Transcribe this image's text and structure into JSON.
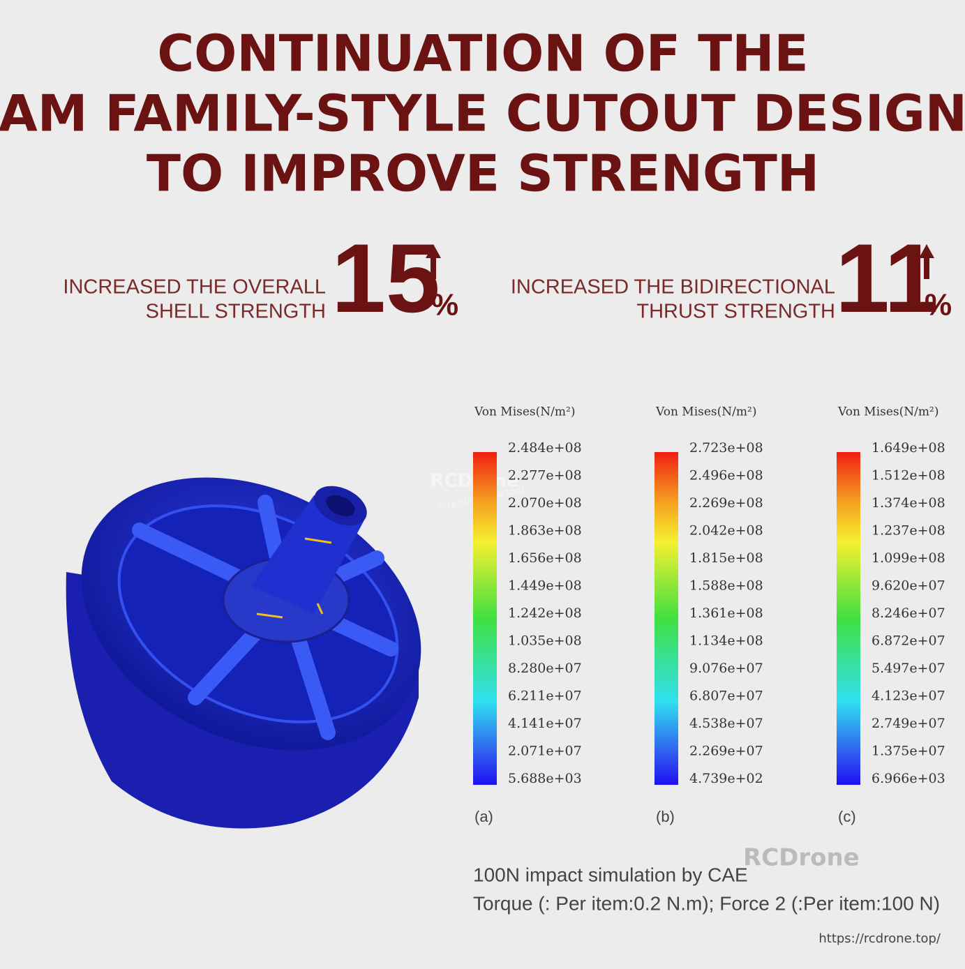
{
  "header": {
    "title_lines": [
      "CONTINUATION OF THE",
      "AM FAMILY-STYLE CUTOUT DESIGN",
      "TO IMPROVE STRENGTH"
    ]
  },
  "stats": [
    {
      "label_lines": [
        "INCREASED THE OVERALL",
        "SHELL STRENGTH"
      ],
      "number": "15",
      "unit": "%"
    },
    {
      "label_lines": [
        "INCREASED THE BIDIRECTIONAL",
        "THRUST STRENGTH"
      ],
      "number": "11",
      "unit": "%"
    }
  ],
  "image_watermark": {
    "brand": "RCDrone",
    "url": "https://rcdrone.top/"
  },
  "legends": [
    {
      "heading": "Von Mises(N/m²)",
      "labels": [
        "2.484e+08",
        "2.277e+08",
        "2.070e+08",
        "1.863e+08",
        "1.656e+08",
        "1.449e+08",
        "1.242e+08",
        "1.035e+08",
        "8.280e+07",
        "6.211e+07",
        "4.141e+07",
        "2.071e+07",
        "5.688e+03"
      ],
      "caption": "(a)"
    },
    {
      "heading": "Von Mises(N/m²)",
      "labels": [
        "2.723e+08",
        "2.496e+08",
        "2.269e+08",
        "2.042e+08",
        "1.815e+08",
        "1.588e+08",
        "1.361e+08",
        "1.134e+08",
        "9.076e+07",
        "6.807e+07",
        "4.538e+07",
        "2.269e+07",
        "4.739e+02"
      ],
      "caption": "(b)"
    },
    {
      "heading": "Von Mises(N/m²)",
      "labels": [
        "1.649e+08",
        "1.512e+08",
        "1.374e+08",
        "1.237e+08",
        "1.099e+08",
        "9.620e+07",
        "8.246e+07",
        "6.872e+07",
        "5.497e+07",
        "4.123e+07",
        "2.749e+07",
        "1.375e+07",
        "6.966e+03"
      ],
      "caption": "(c)"
    }
  ],
  "footer": {
    "caption_lines": [
      "100N impact simulation by CAE",
      "Torque (: Per item:0.2 N.m); Force 2 (:Per item:100 N)"
    ],
    "watermark": "RCDrone",
    "url": "https://rcdrone.top/"
  }
}
